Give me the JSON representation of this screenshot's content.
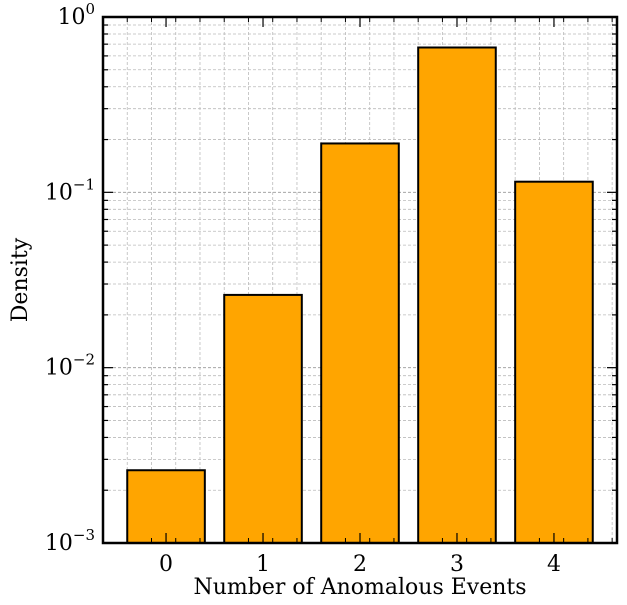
{
  "chart_data": {
    "type": "bar",
    "xlabel": "Number of Anomalous Events",
    "ylabel": "Density",
    "categories": [
      "0",
      "1",
      "2",
      "3",
      "4"
    ],
    "values": [
      0.0026,
      0.026,
      0.19,
      0.67,
      0.115
    ],
    "y_scale": "log",
    "ylim": [
      0.001,
      1
    ],
    "y_tick_labels": [
      {
        "base": "10",
        "exp": "0"
      },
      {
        "base": "10",
        "exp": "−1"
      },
      {
        "base": "10",
        "exp": "−2"
      },
      {
        "base": "10",
        "exp": "−3"
      }
    ],
    "grid": true,
    "bar_color": "#FFA500",
    "edge_color": "#000000"
  }
}
